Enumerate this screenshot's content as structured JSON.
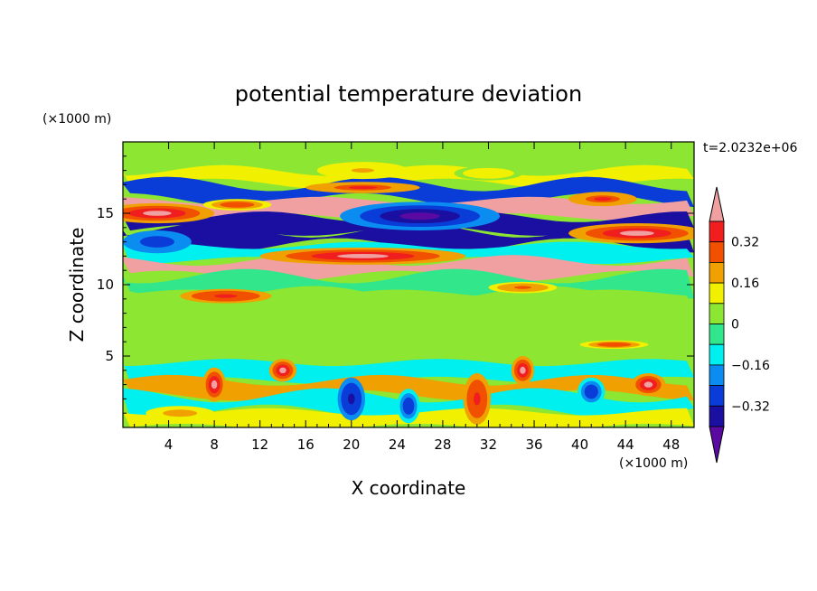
{
  "chart_data": {
    "type": "heatmap",
    "title": "potential temperature deviation",
    "xlabel": "X coordinate",
    "ylabel": "Z coordinate",
    "x_unit": "(×1000 m)",
    "y_unit": "(×1000 m)",
    "time_label": "t=2.0232e+06",
    "xlim": [
      0,
      50
    ],
    "ylim": [
      0,
      20
    ],
    "x_ticks": [
      4,
      8,
      12,
      16,
      20,
      24,
      28,
      32,
      36,
      40,
      44,
      48
    ],
    "y_ticks": [
      5,
      10,
      15
    ],
    "colorbar": {
      "levels": [
        -0.4,
        -0.32,
        -0.24,
        -0.16,
        -0.08,
        0,
        0.08,
        0.16,
        0.24,
        0.32,
        0.4
      ],
      "labels": [
        "0.32",
        "0.16",
        "0",
        "−0.16",
        "−0.32"
      ],
      "label_values": [
        0.32,
        0.16,
        0,
        -0.16,
        -0.32
      ],
      "colors": [
        "#5a0aa0",
        "#1a0fa0",
        "#0a3cd8",
        "#0a8cf0",
        "#00f0f0",
        "#32e68c",
        "#8ce632",
        "#f0f000",
        "#f0a000",
        "#f05000",
        "#f01e1e",
        "#f0a0a0"
      ]
    },
    "bands": [
      {
        "z": 18.5,
        "value": 0.04
      },
      {
        "z": 17.5,
        "value": 0.14
      },
      {
        "z": 16.6,
        "value": -0.26
      },
      {
        "z": 15.2,
        "value": 0.42
      },
      {
        "z": 14.3,
        "value": -0.34
      },
      {
        "z": 13.3,
        "value": -0.36
      },
      {
        "z": 12.2,
        "value": -0.12
      },
      {
        "z": 11.2,
        "value": 0.42
      },
      {
        "z": 10.0,
        "value": -0.06
      },
      {
        "z": 8.8,
        "value": 0.02
      },
      {
        "z": 7.0,
        "value": 0.03
      },
      {
        "z": 5.3,
        "value": 0.01
      },
      {
        "z": 3.8,
        "value": -0.1
      },
      {
        "z": 2.8,
        "value": 0.2
      },
      {
        "z": 1.7,
        "value": -0.14
      },
      {
        "z": 0.5,
        "value": 0.12
      }
    ],
    "features": [
      {
        "x": 3,
        "z": 15.0,
        "rx": 5,
        "rz": 0.7,
        "value": 0.44
      },
      {
        "x": 10,
        "z": 15.6,
        "rx": 3,
        "rz": 0.4,
        "value": 0.3
      },
      {
        "x": 26,
        "z": 14.8,
        "rx": 7,
        "rz": 1.0,
        "value": -0.44
      },
      {
        "x": 21,
        "z": 12.0,
        "rx": 9,
        "rz": 0.6,
        "value": 0.44
      },
      {
        "x": 45,
        "z": 13.6,
        "rx": 6,
        "rz": 0.7,
        "value": 0.44
      },
      {
        "x": 21,
        "z": 16.8,
        "rx": 5,
        "rz": 0.4,
        "value": 0.34
      },
      {
        "x": 42,
        "z": 16.0,
        "rx": 3,
        "rz": 0.5,
        "value": 0.34
      },
      {
        "x": 3,
        "z": 13.0,
        "rx": 3,
        "rz": 0.8,
        "value": -0.32
      },
      {
        "x": 9,
        "z": 9.2,
        "rx": 4,
        "rz": 0.5,
        "value": 0.38
      },
      {
        "x": 35,
        "z": 9.8,
        "rx": 3,
        "rz": 0.4,
        "value": 0.24
      },
      {
        "x": 21,
        "z": 18.0,
        "rx": 4,
        "rz": 0.6,
        "value": 0.16
      },
      {
        "x": 32,
        "z": 17.8,
        "rx": 3,
        "rz": 0.5,
        "value": 0.12
      },
      {
        "x": 8,
        "z": 3.0,
        "rx": 1.0,
        "rz": 1.2,
        "value": 0.44
      },
      {
        "x": 14,
        "z": 4.0,
        "rx": 1.2,
        "rz": 0.8,
        "value": 0.42
      },
      {
        "x": 31,
        "z": 2.0,
        "rx": 1.2,
        "rz": 1.8,
        "value": 0.36
      },
      {
        "x": 35,
        "z": 4.0,
        "rx": 1.0,
        "rz": 1.0,
        "value": 0.42
      },
      {
        "x": 46,
        "z": 3.0,
        "rx": 1.5,
        "rz": 0.8,
        "value": 0.42
      },
      {
        "x": 20,
        "z": 2.0,
        "rx": 1.2,
        "rz": 1.5,
        "value": -0.36
      },
      {
        "x": 25,
        "z": 1.5,
        "rx": 1.0,
        "rz": 1.2,
        "value": -0.3
      },
      {
        "x": 41,
        "z": 2.5,
        "rx": 1.2,
        "rz": 1.0,
        "value": -0.3
      },
      {
        "x": 5,
        "z": 1.0,
        "rx": 3,
        "rz": 0.5,
        "value": 0.2
      },
      {
        "x": 43,
        "z": 5.8,
        "rx": 3,
        "rz": 0.3,
        "value": 0.3
      }
    ]
  }
}
